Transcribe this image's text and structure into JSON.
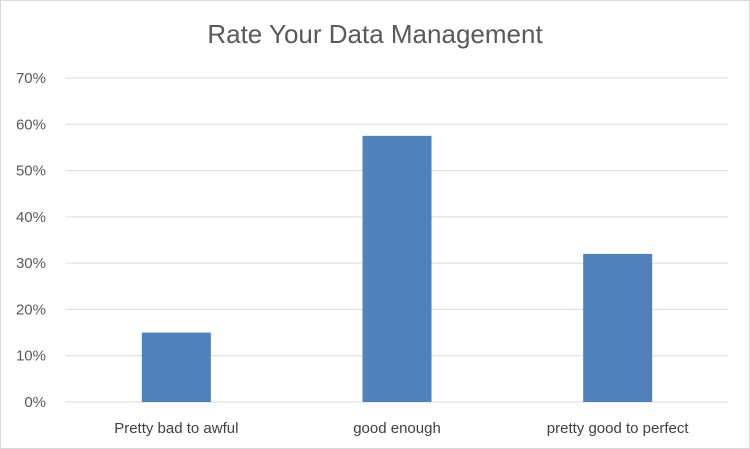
{
  "chart_data": {
    "type": "bar",
    "title": "Rate Your Data Management",
    "categories": [
      "Pretty bad to awful",
      "good enough",
      "pretty good to perfect"
    ],
    "values": [
      0.15,
      0.575,
      0.32
    ],
    "ylim": [
      0,
      0.7
    ],
    "yticks": [
      0,
      0.1,
      0.2,
      0.3,
      0.4,
      0.5,
      0.6,
      0.7
    ],
    "ytick_labels": [
      "0%",
      "10%",
      "20%",
      "30%",
      "40%",
      "50%",
      "60%",
      "70%"
    ],
    "xlabel": "",
    "ylabel": "",
    "grid": true,
    "legend": "none",
    "colors": {
      "bar": "#4f81bd",
      "grid": "#d9d9d9",
      "text": "#595959"
    }
  }
}
